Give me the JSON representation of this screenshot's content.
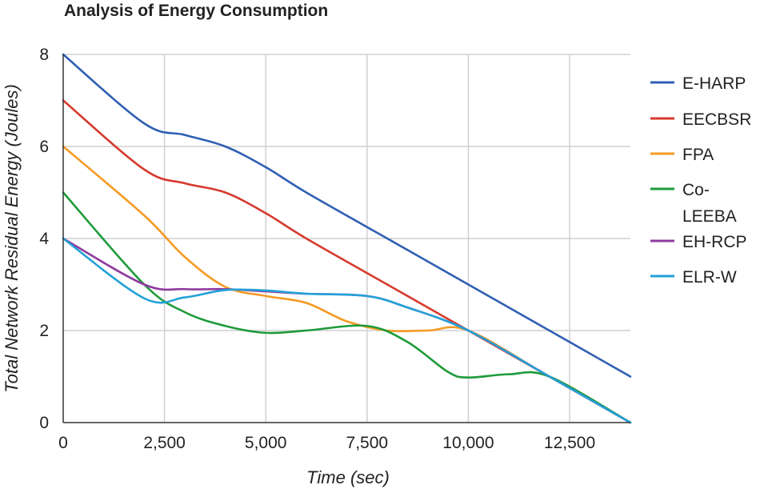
{
  "chart_data": {
    "type": "line",
    "title": "Analysis of Energy Consumption",
    "xlabel": "Time (sec)",
    "ylabel": "Total Network Residual Energy (Joules)",
    "xlim": [
      0,
      14000
    ],
    "ylim": [
      0,
      8
    ],
    "xticks": [
      0,
      2500,
      5000,
      7500,
      10000,
      12500
    ],
    "xtick_labels": [
      "0",
      "2,500",
      "5,000",
      "7,500",
      "10,000",
      "12,500"
    ],
    "yticks": [
      0,
      2,
      4,
      6,
      8
    ],
    "ytick_labels": [
      "0",
      "2",
      "4",
      "6",
      "8"
    ],
    "grid": true,
    "legend_position": "right",
    "series": [
      {
        "name": "E-HARP",
        "color": "#2f5fb3",
        "legend_lines": [
          "E-HARP"
        ],
        "x": [
          0,
          2000,
          3000,
          4000,
          5000,
          6000,
          8000,
          10000,
          12000,
          14000
        ],
        "y": [
          8.0,
          6.5,
          6.25,
          6.0,
          5.55,
          5.0,
          4.0,
          3.0,
          2.0,
          1.0
        ]
      },
      {
        "name": "EECBSR",
        "color": "#d63a2e",
        "legend_lines": [
          "EECBSR"
        ],
        "x": [
          0,
          2000,
          3000,
          4000,
          5000,
          6000,
          8000,
          10000,
          12000,
          14000
        ],
        "y": [
          7.0,
          5.5,
          5.2,
          5.0,
          4.55,
          4.0,
          3.0,
          2.0,
          1.0,
          0.0
        ]
      },
      {
        "name": "FPA",
        "color": "#f59a23",
        "legend_lines": [
          "FPA"
        ],
        "x": [
          0,
          2000,
          3000,
          4000,
          5000,
          6000,
          7000,
          8000,
          9000,
          10000,
          12000,
          14000
        ],
        "y": [
          6.0,
          4.5,
          3.6,
          2.95,
          2.75,
          2.6,
          2.2,
          2.0,
          2.0,
          2.0,
          1.0,
          0.0
        ]
      },
      {
        "name": "Co-LEEBA",
        "color": "#1e9b3a",
        "legend_lines": [
          "Co-",
          "LEEBA"
        ],
        "x": [
          0,
          2000,
          3000,
          4000,
          5000,
          6000,
          7500,
          8500,
          9500,
          10000,
          11000,
          12000,
          14000
        ],
        "y": [
          5.0,
          3.0,
          2.4,
          2.1,
          1.95,
          2.0,
          2.1,
          1.75,
          1.1,
          0.98,
          1.05,
          1.0,
          0.0
        ]
      },
      {
        "name": "EH-RCP",
        "color": "#8e3a9e",
        "legend_lines": [
          "EH-RCP"
        ],
        "x": [
          0,
          2000,
          3000,
          4000,
          5000,
          6000,
          7500,
          8500,
          10000,
          12000,
          14000
        ],
        "y": [
          4.0,
          3.0,
          2.9,
          2.9,
          2.85,
          2.8,
          2.75,
          2.5,
          2.0,
          1.0,
          0.0
        ]
      },
      {
        "name": "ELR-W",
        "color": "#22a1d8",
        "legend_lines": [
          "ELR-W"
        ],
        "x": [
          0,
          2000,
          3000,
          4000,
          5000,
          6000,
          7500,
          8500,
          10000,
          12000,
          14000
        ],
        "y": [
          4.0,
          2.7,
          2.72,
          2.88,
          2.87,
          2.8,
          2.75,
          2.5,
          2.0,
          1.0,
          0.0
        ]
      }
    ]
  }
}
